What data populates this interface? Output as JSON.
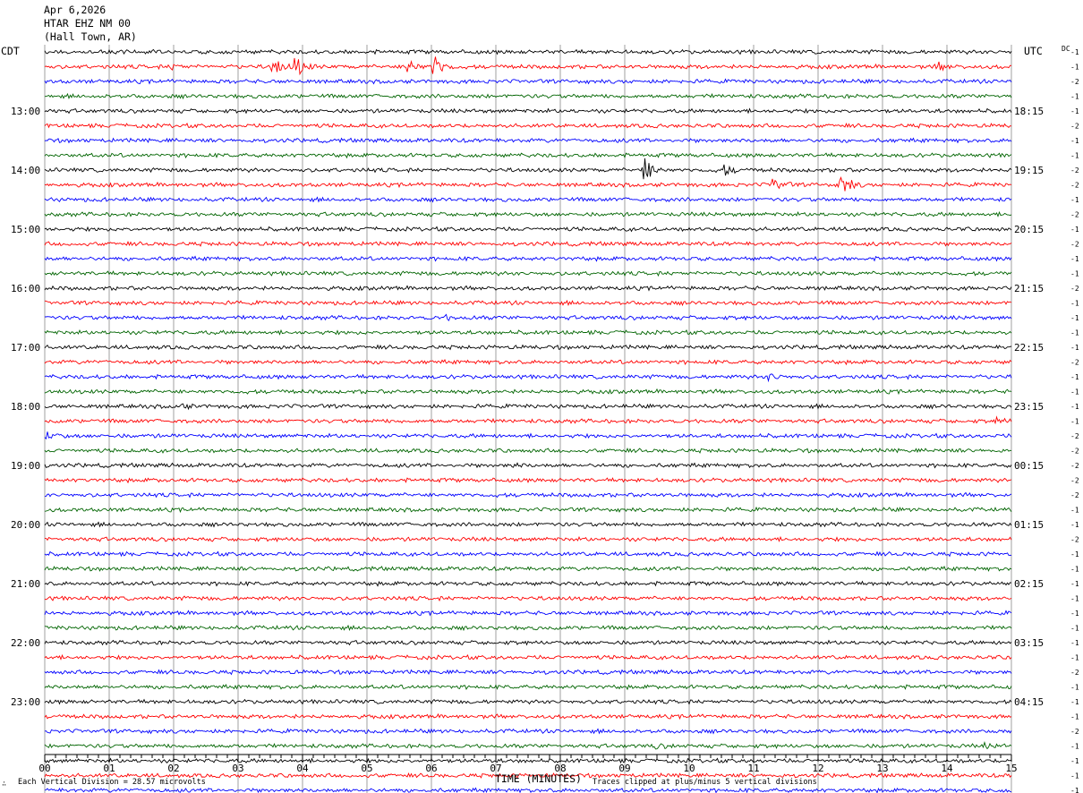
{
  "header": {
    "date": "Apr 6,2026",
    "station": "HTAR EHZ NM 00",
    "location": "(Hall Town, AR)"
  },
  "axes": {
    "left_label": "CDT",
    "right_label": "UTC",
    "dc_label": "DC",
    "xlabel": "TIME (MINUTES)"
  },
  "footer": {
    "left_glyph": "∴",
    "vertical_division": "Each Vertical Division =   28.57 microvolts",
    "clipping_note": "Traces clipped at plus/minus 5 vertical divisions"
  },
  "chart_data": {
    "type": "line",
    "subtype": "helicorder",
    "xlim": [
      0,
      15
    ],
    "x_ticks": [
      "00",
      "01",
      "02",
      "03",
      "04",
      "05",
      "06",
      "07",
      "08",
      "09",
      "10",
      "11",
      "12",
      "13",
      "14",
      "15"
    ],
    "minor_ticks_per_minute": 6,
    "trace_colors": [
      "#000000",
      "#ff0000",
      "#0000ff",
      "#006400"
    ],
    "grid": "vertical lines each minute",
    "left_hour_labels": [
      "13:00",
      "14:00",
      "15:00",
      "16:00",
      "17:00",
      "18:00",
      "19:00",
      "20:00",
      "21:00",
      "22:00",
      "23:00"
    ],
    "right_hour_labels": [
      "18:15",
      "19:15",
      "20:15",
      "21:15",
      "22:15",
      "23:15",
      "00:15",
      "01:15",
      "02:15",
      "03:15",
      "04:15"
    ],
    "hour_label_first_trace": 4,
    "traces_per_hour": 4,
    "dc_offsets": [
      -1,
      -1,
      -2,
      -1,
      -1,
      -2,
      -1,
      -1,
      -2,
      -2,
      -1,
      -2,
      -1,
      -2,
      -1,
      -1,
      -2,
      -1,
      -1,
      -1,
      -1,
      -2,
      -1,
      -1,
      -1,
      -1,
      -2,
      -2,
      -2,
      -2,
      -2,
      -1,
      -1,
      -2,
      -1,
      -1,
      -1,
      -1,
      -1,
      -1,
      -1,
      -1,
      -2,
      -1,
      -1,
      -1,
      -2,
      -1,
      -1,
      -1,
      -1,
      -2
    ],
    "events": [
      {
        "trace": 1,
        "minute": 1.95,
        "amp": 0.6
      },
      {
        "trace": 1,
        "minute": 3.55,
        "amp": 1.8
      },
      {
        "trace": 1,
        "minute": 3.9,
        "amp": 2.2
      },
      {
        "trace": 1,
        "minute": 5.65,
        "amp": 1.5
      },
      {
        "trace": 1,
        "minute": 6.05,
        "amp": 2.4
      },
      {
        "trace": 1,
        "minute": 13.85,
        "amp": 1.0
      },
      {
        "trace": 8,
        "minute": 9.3,
        "amp": 2.8
      },
      {
        "trace": 8,
        "minute": 10.5,
        "amp": 1.6
      },
      {
        "trace": 9,
        "minute": 11.3,
        "amp": 1.5
      },
      {
        "trace": 9,
        "minute": 12.35,
        "amp": 3.0
      },
      {
        "trace": 18,
        "minute": 6.2,
        "amp": 0.5
      },
      {
        "trace": 22,
        "minute": 11.25,
        "amp": 0.7
      },
      {
        "trace": 24,
        "minute": 2.1,
        "amp": 0.5
      },
      {
        "trace": 25,
        "minute": 14.8,
        "amp": 0.6
      },
      {
        "trace": 26,
        "minute": 0.05,
        "amp": 0.8
      },
      {
        "trace": 28,
        "minute": 7.3,
        "amp": 0.4
      },
      {
        "trace": 47,
        "minute": 9.5,
        "amp": 0.4
      },
      {
        "trace": 47,
        "minute": 14.6,
        "amp": 0.4
      }
    ]
  }
}
